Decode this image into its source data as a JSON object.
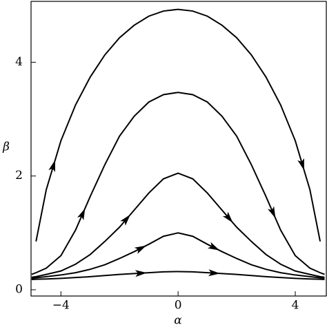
{
  "chart_data": {
    "type": "line",
    "xlabel": "α",
    "ylabel": "β",
    "x": [
      -5,
      -4.85,
      -4.5,
      -4,
      -3.5,
      -3,
      -2.5,
      -2,
      -1.5,
      -1,
      -0.5,
      0,
      0.5,
      1,
      1.5,
      2,
      2.5,
      3,
      3.5,
      4,
      4.5,
      4.85,
      5
    ],
    "series": [
      {
        "color": "#000000",
        "values": [
          null,
          0.85,
          1.76,
          2.62,
          3.25,
          3.74,
          4.13,
          4.43,
          4.65,
          4.81,
          4.9,
          4.93,
          4.9,
          4.81,
          4.65,
          4.43,
          4.13,
          3.74,
          3.25,
          2.62,
          1.76,
          0.85,
          null
        ]
      },
      {
        "color": "#000000",
        "values": [
          0.27,
          0.3,
          0.38,
          0.6,
          1.05,
          1.64,
          2.2,
          2.7,
          3.05,
          3.3,
          3.43,
          3.47,
          3.43,
          3.3,
          3.05,
          2.7,
          2.2,
          1.64,
          1.05,
          0.6,
          0.38,
          0.3,
          0.27
        ]
      },
      {
        "color": "#000000",
        "values": [
          0.22,
          0.23,
          0.27,
          0.33,
          0.45,
          0.62,
          0.85,
          1.1,
          1.4,
          1.7,
          1.95,
          2.05,
          1.95,
          1.7,
          1.4,
          1.1,
          0.85,
          0.62,
          0.45,
          0.33,
          0.27,
          0.23,
          0.22
        ]
      },
      {
        "color": "#000000",
        "values": [
          0.2,
          0.21,
          0.23,
          0.26,
          0.3,
          0.36,
          0.44,
          0.55,
          0.67,
          0.8,
          0.94,
          1.0,
          0.94,
          0.8,
          0.67,
          0.55,
          0.44,
          0.36,
          0.3,
          0.26,
          0.23,
          0.21,
          0.2
        ]
      },
      {
        "color": "#000000",
        "values": [
          0.18,
          0.185,
          0.19,
          0.2,
          0.215,
          0.23,
          0.25,
          0.27,
          0.285,
          0.3,
          0.315,
          0.32,
          0.315,
          0.3,
          0.285,
          0.27,
          0.25,
          0.23,
          0.215,
          0.2,
          0.19,
          0.185,
          0.18
        ]
      }
    ],
    "xlim": [
      -5.02,
      5.06
    ],
    "ylim": [
      -0.11,
      5.07
    ],
    "xticks": [
      {
        "value": -4,
        "label": "−4"
      },
      0,
      4
    ],
    "yticks": [
      0,
      2,
      4
    ]
  }
}
